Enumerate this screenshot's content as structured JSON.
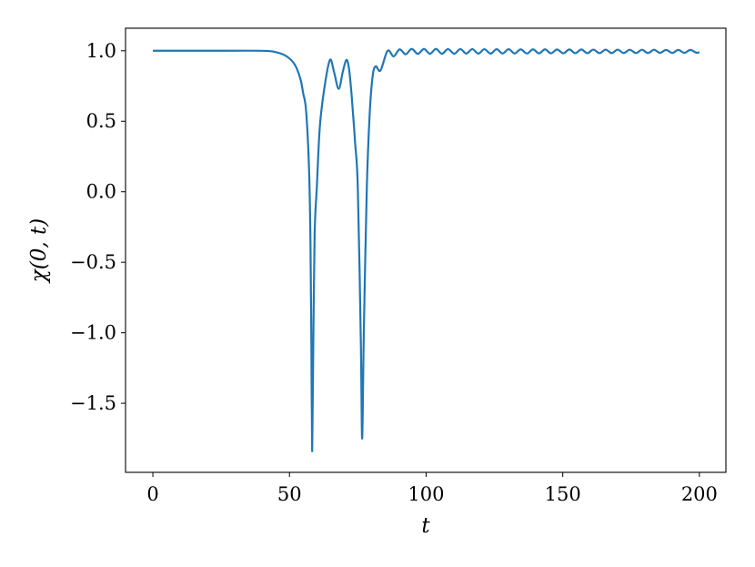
{
  "chart_data": {
    "type": "line",
    "title": "",
    "xlabel": "t",
    "ylabel": "χ(0, t)",
    "xlim": [
      -10,
      209.7
    ],
    "ylim": [
      -1.99,
      1.16
    ],
    "xticks": [
      0,
      50,
      100,
      150,
      200
    ],
    "xtick_labels": [
      "0",
      "50",
      "100",
      "150",
      "200"
    ],
    "yticks": [
      1.0,
      0.5,
      0.0,
      -0.5,
      -1.0,
      -1.5
    ],
    "ytick_labels": [
      "1.0",
      "0.5",
      "0.0",
      "−0.5",
      "−1.0",
      "−1.5"
    ],
    "grid": false,
    "legend": "none",
    "series": [
      {
        "color": "#1f77b4",
        "x": [
          0,
          20,
          40,
          45,
          49,
          52,
          54,
          55,
          56.1,
          57.2,
          57.7,
          58.0,
          58.3,
          58.7,
          59.2,
          60.0,
          61.1,
          62.8,
          64.8,
          66.3,
          68.0,
          69.5,
          70.8,
          71.8,
          72.8,
          74.0,
          75.0,
          76.1,
          76.6,
          77.2,
          78.3,
          79.4,
          80.5,
          81.6,
          83.3,
          85.9,
          88.1,
          90.3,
          92.5,
          94.7,
          97.0,
          99.2,
          101.4,
          103.6,
          105.8,
          108.0,
          110.3,
          112.5,
          114.7,
          116.9,
          119.1,
          121.3,
          123.6,
          125.8,
          128.0,
          130.2,
          132.4,
          134.6,
          136.9,
          139.1,
          141.3,
          143.5,
          145.7,
          147.9,
          150.2,
          152.4,
          154.6,
          156.8,
          159.0,
          161.2,
          163.5,
          165.7,
          167.9,
          170.1,
          172.3,
          174.5,
          176.8,
          179.0,
          181.2,
          183.4,
          185.6,
          187.8,
          190.1,
          192.3,
          194.5,
          196.7,
          198.9,
          200
        ],
        "y": [
          1.0,
          1.0,
          1.0,
          0.99,
          0.96,
          0.9,
          0.8,
          0.7,
          0.57,
          0.135,
          -0.4,
          -1.05,
          -1.84,
          -1.1,
          -0.3,
          0.03,
          0.46,
          0.74,
          0.935,
          0.85,
          0.73,
          0.85,
          0.935,
          0.87,
          0.67,
          0.35,
          0.03,
          -1.05,
          -1.75,
          -1.0,
          0.03,
          0.57,
          0.83,
          0.89,
          0.86,
          1.0,
          0.96,
          1.01,
          0.975,
          1.013,
          0.978,
          1.013,
          0.979,
          1.013,
          0.979,
          1.012,
          0.979,
          1.012,
          0.98,
          1.012,
          0.98,
          1.011,
          0.98,
          1.011,
          0.981,
          1.011,
          0.981,
          1.01,
          0.981,
          1.01,
          0.982,
          1.01,
          0.982,
          1.009,
          0.982,
          1.009,
          0.983,
          1.009,
          0.983,
          1.008,
          0.983,
          1.008,
          0.983,
          1.008,
          0.984,
          1.007,
          0.984,
          1.007,
          0.984,
          1.007,
          0.985,
          1.006,
          0.985,
          1.006,
          0.985,
          1.006,
          0.986,
          0.99
        ]
      }
    ]
  }
}
